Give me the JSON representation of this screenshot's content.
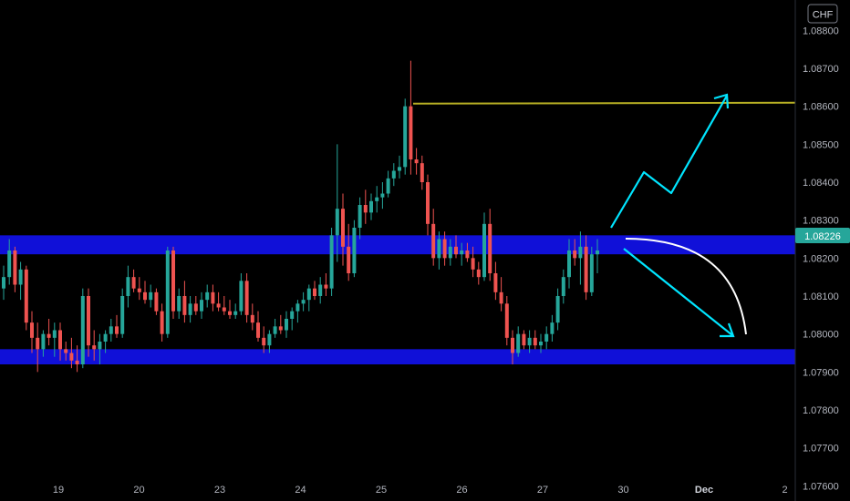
{
  "symbol_label": "CHF",
  "price_badge": "1.08226",
  "colors": {
    "background": "#000000",
    "up": "#26a69a",
    "down": "#ef5350",
    "zone": "#1010d8",
    "resistance": "#b8b024",
    "arrow": "#00e5ff",
    "curve": "#ffffff",
    "badge": "#26a69a"
  },
  "chart_data": {
    "type": "candlestick",
    "ylim": [
      1.0756,
      1.0888
    ],
    "y_ticks": [
      "1.07600",
      "1.07700",
      "1.07800",
      "1.07900",
      "1.08000",
      "1.08100",
      "1.08200",
      "1.08300",
      "1.08400",
      "1.08500",
      "1.08600",
      "1.08700",
      "1.08800"
    ],
    "x_ticks": [
      {
        "label": "19",
        "bold": false
      },
      {
        "label": "20",
        "bold": false
      },
      {
        "label": "23",
        "bold": false
      },
      {
        "label": "24",
        "bold": false
      },
      {
        "label": "25",
        "bold": false
      },
      {
        "label": "26",
        "bold": false
      },
      {
        "label": "27",
        "bold": false
      },
      {
        "label": "30",
        "bold": false
      },
      {
        "label": "Dec",
        "bold": true
      },
      {
        "label": "2",
        "bold": false
      }
    ],
    "zones": [
      {
        "low": 1.0821,
        "high": 1.0826
      },
      {
        "low": 1.0792,
        "high": 1.0796
      }
    ],
    "resistance_level": 1.08607,
    "candles": [
      [
        1.0812,
        1.0818,
        1.0809,
        1.0815
      ],
      [
        1.0815,
        1.0825,
        1.0813,
        1.0822
      ],
      [
        1.0822,
        1.0823,
        1.0811,
        1.0813
      ],
      [
        1.0813,
        1.0819,
        1.0809,
        1.0817
      ],
      [
        1.0817,
        1.0818,
        1.0801,
        1.0803
      ],
      [
        1.0803,
        1.0806,
        1.0795,
        1.0799
      ],
      [
        1.0799,
        1.0803,
        1.079,
        1.0796
      ],
      [
        1.0796,
        1.0801,
        1.0794,
        1.08
      ],
      [
        1.08,
        1.0804,
        1.0797,
        1.0799
      ],
      [
        1.0799,
        1.0803,
        1.0794,
        1.0801
      ],
      [
        1.0801,
        1.0803,
        1.0793,
        1.0796
      ],
      [
        1.0796,
        1.0798,
        1.0793,
        1.0795
      ],
      [
        1.0795,
        1.0799,
        1.0791,
        1.0793
      ],
      [
        1.0793,
        1.0797,
        1.079,
        1.0792
      ],
      [
        1.0792,
        1.0812,
        1.0791,
        1.081
      ],
      [
        1.081,
        1.0812,
        1.0794,
        1.0797
      ],
      [
        1.0797,
        1.0801,
        1.0793,
        1.0796
      ],
      [
        1.0796,
        1.08,
        1.0792,
        1.0798
      ],
      [
        1.0798,
        1.0801,
        1.0795,
        1.08
      ],
      [
        1.08,
        1.0804,
        1.0798,
        1.0802
      ],
      [
        1.0802,
        1.0805,
        1.0799,
        1.08
      ],
      [
        1.08,
        1.0812,
        1.0799,
        1.081
      ],
      [
        1.081,
        1.0818,
        1.0807,
        1.0815
      ],
      [
        1.0815,
        1.0817,
        1.0811,
        1.0812
      ],
      [
        1.0812,
        1.0815,
        1.0809,
        1.0811
      ],
      [
        1.0811,
        1.0814,
        1.0808,
        1.0809
      ],
      [
        1.0809,
        1.0813,
        1.0807,
        1.0811
      ],
      [
        1.0811,
        1.0812,
        1.0805,
        1.0806
      ],
      [
        1.0806,
        1.0808,
        1.0798,
        1.08
      ],
      [
        1.08,
        1.0823,
        1.0799,
        1.0822
      ],
      [
        1.0822,
        1.0823,
        1.0804,
        1.0806
      ],
      [
        1.0806,
        1.0812,
        1.0804,
        1.081
      ],
      [
        1.081,
        1.0814,
        1.0803,
        1.0805
      ],
      [
        1.0805,
        1.081,
        1.0803,
        1.0808
      ],
      [
        1.0808,
        1.081,
        1.0805,
        1.0806
      ],
      [
        1.0806,
        1.0811,
        1.0804,
        1.0809
      ],
      [
        1.0809,
        1.0813,
        1.0807,
        1.0811
      ],
      [
        1.0811,
        1.0813,
        1.0806,
        1.0808
      ],
      [
        1.0808,
        1.0811,
        1.0806,
        1.0807
      ],
      [
        1.0807,
        1.081,
        1.0805,
        1.0806
      ],
      [
        1.0806,
        1.0809,
        1.0804,
        1.0805
      ],
      [
        1.0805,
        1.0808,
        1.0804,
        1.0806
      ],
      [
        1.0806,
        1.0816,
        1.0805,
        1.0814
      ],
      [
        1.0814,
        1.0816,
        1.0803,
        1.0805
      ],
      [
        1.0805,
        1.0808,
        1.0801,
        1.0803
      ],
      [
        1.0803,
        1.0806,
        1.0798,
        1.0799
      ],
      [
        1.0799,
        1.0802,
        1.0795,
        1.0797
      ],
      [
        1.0797,
        1.0801,
        1.0795,
        1.08
      ],
      [
        1.08,
        1.0804,
        1.0799,
        1.0802
      ],
      [
        1.0802,
        1.0805,
        1.08,
        1.0801
      ],
      [
        1.0801,
        1.0806,
        1.0799,
        1.0804
      ],
      [
        1.0804,
        1.0807,
        1.0801,
        1.0806
      ],
      [
        1.0806,
        1.0809,
        1.0803,
        1.0808
      ],
      [
        1.0808,
        1.0811,
        1.0806,
        1.0809
      ],
      [
        1.0809,
        1.0813,
        1.0806,
        1.0812
      ],
      [
        1.0812,
        1.0814,
        1.0809,
        1.081
      ],
      [
        1.081,
        1.0815,
        1.0808,
        1.0813
      ],
      [
        1.0813,
        1.0816,
        1.081,
        1.0812
      ],
      [
        1.0812,
        1.0828,
        1.081,
        1.0826
      ],
      [
        1.0826,
        1.085,
        1.0819,
        1.0833
      ],
      [
        1.0833,
        1.0837,
        1.0818,
        1.0823
      ],
      [
        1.0823,
        1.0829,
        1.0814,
        1.0816
      ],
      [
        1.0816,
        1.083,
        1.0815,
        1.0828
      ],
      [
        1.0828,
        1.0836,
        1.0825,
        1.0834
      ],
      [
        1.0834,
        1.0838,
        1.0829,
        1.0832
      ],
      [
        1.0832,
        1.0837,
        1.083,
        1.0835
      ],
      [
        1.0835,
        1.0839,
        1.0832,
        1.0836
      ],
      [
        1.0836,
        1.084,
        1.0833,
        1.0837
      ],
      [
        1.0837,
        1.0843,
        1.0836,
        1.0841
      ],
      [
        1.0841,
        1.0845,
        1.0839,
        1.0843
      ],
      [
        1.0843,
        1.0847,
        1.0841,
        1.0844
      ],
      [
        1.0844,
        1.0862,
        1.0842,
        1.086
      ],
      [
        1.086,
        1.0872,
        1.0842,
        1.0846
      ],
      [
        1.0846,
        1.0849,
        1.0842,
        1.0845
      ],
      [
        1.0845,
        1.0847,
        1.0838,
        1.084
      ],
      [
        1.084,
        1.0842,
        1.0826,
        1.0829
      ],
      [
        1.0829,
        1.0833,
        1.0818,
        1.082
      ],
      [
        1.082,
        1.0827,
        1.0817,
        1.0825
      ],
      [
        1.0825,
        1.0827,
        1.0818,
        1.082
      ],
      [
        1.082,
        1.0825,
        1.0818,
        1.0823
      ],
      [
        1.0823,
        1.0826,
        1.082,
        1.0821
      ],
      [
        1.0821,
        1.0824,
        1.0818,
        1.0822
      ],
      [
        1.0822,
        1.0824,
        1.0819,
        1.082
      ],
      [
        1.082,
        1.0823,
        1.0815,
        1.0817
      ],
      [
        1.0817,
        1.0819,
        1.0813,
        1.0815
      ],
      [
        1.0815,
        1.0832,
        1.0814,
        1.0829
      ],
      [
        1.0829,
        1.0833,
        1.0814,
        1.0816
      ],
      [
        1.0816,
        1.0819,
        1.0809,
        1.0811
      ],
      [
        1.0811,
        1.0815,
        1.0806,
        1.0808
      ],
      [
        1.0808,
        1.081,
        1.0797,
        1.0799
      ],
      [
        1.0799,
        1.0801,
        1.0792,
        1.0795
      ],
      [
        1.0795,
        1.0802,
        1.0794,
        1.08
      ],
      [
        1.08,
        1.0801,
        1.0796,
        1.0797
      ],
      [
        1.0797,
        1.0801,
        1.0795,
        1.0799
      ],
      [
        1.0799,
        1.0801,
        1.0796,
        1.0797
      ],
      [
        1.0797,
        1.08,
        1.0795,
        1.0798
      ],
      [
        1.0798,
        1.0802,
        1.0796,
        1.08
      ],
      [
        1.08,
        1.0805,
        1.0798,
        1.0803
      ],
      [
        1.0803,
        1.0812,
        1.0801,
        1.081
      ],
      [
        1.081,
        1.0817,
        1.0808,
        1.0815
      ],
      [
        1.0815,
        1.0825,
        1.0812,
        1.0822
      ],
      [
        1.0822,
        1.0825,
        1.0818,
        1.082
      ],
      [
        1.082,
        1.0827,
        1.0813,
        1.0823
      ],
      [
        1.0823,
        1.0826,
        1.0809,
        1.0811
      ],
      [
        1.0811,
        1.0823,
        1.081,
        1.0821
      ],
      [
        1.0821,
        1.0825,
        1.0816,
        1.0822
      ]
    ]
  }
}
